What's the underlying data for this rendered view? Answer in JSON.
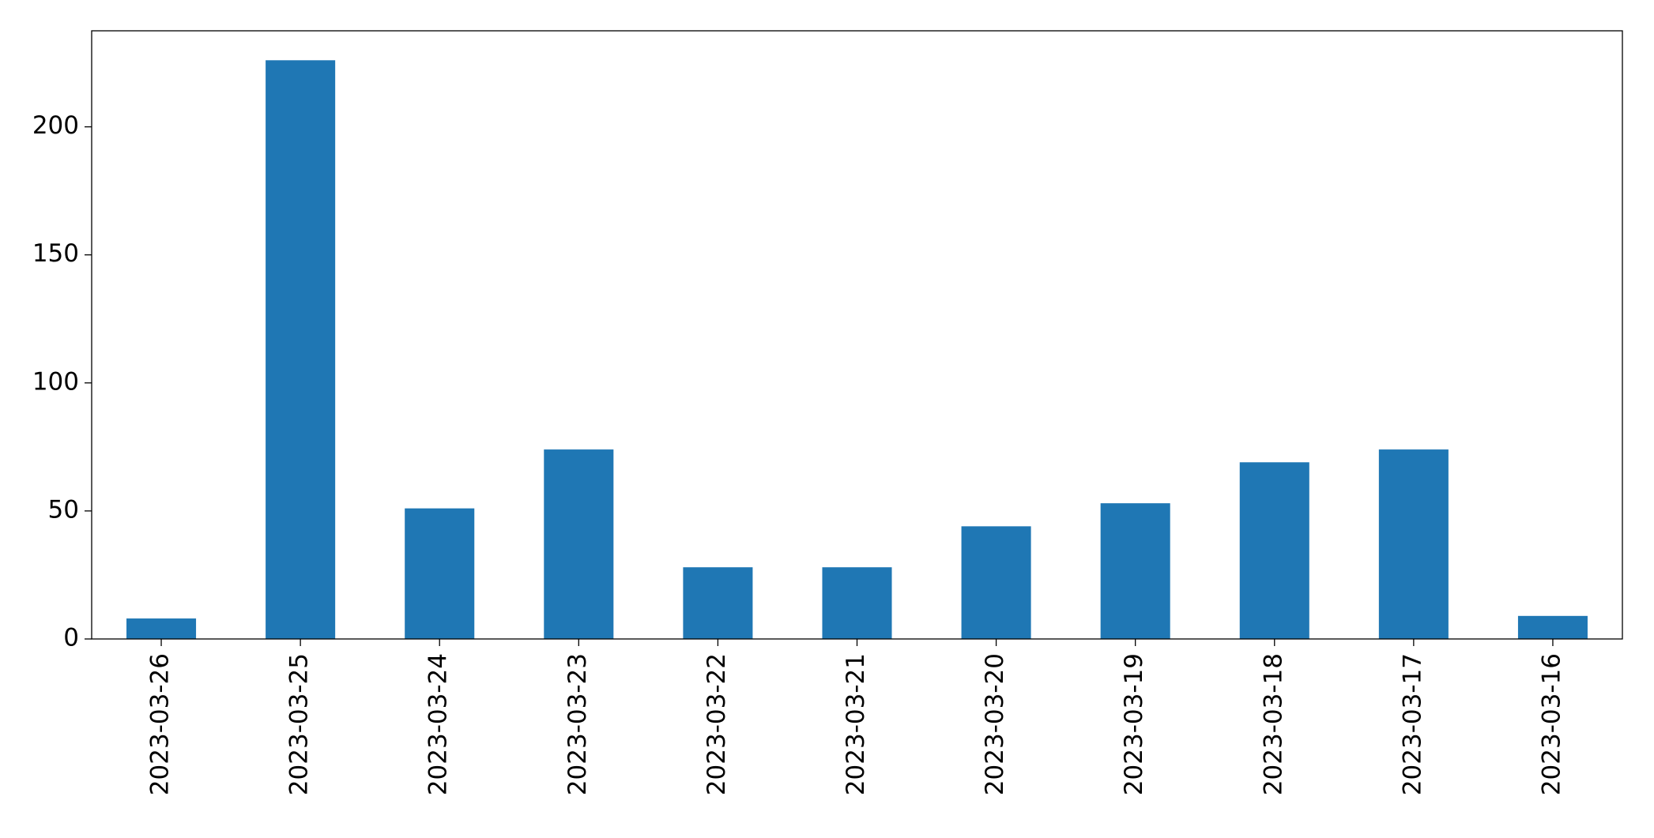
{
  "chart_data": {
    "type": "bar",
    "categories": [
      "2023-03-26",
      "2023-03-25",
      "2023-03-24",
      "2023-03-23",
      "2023-03-22",
      "2023-03-21",
      "2023-03-20",
      "2023-03-19",
      "2023-03-18",
      "2023-03-17",
      "2023-03-16"
    ],
    "values": [
      8,
      226,
      51,
      74,
      28,
      28,
      44,
      53,
      69,
      74,
      9
    ],
    "color": "#1f77b4",
    "ylim": [
      0,
      237.5
    ],
    "yticks": [
      0,
      50,
      100,
      150,
      200
    ],
    "grid": false
  }
}
